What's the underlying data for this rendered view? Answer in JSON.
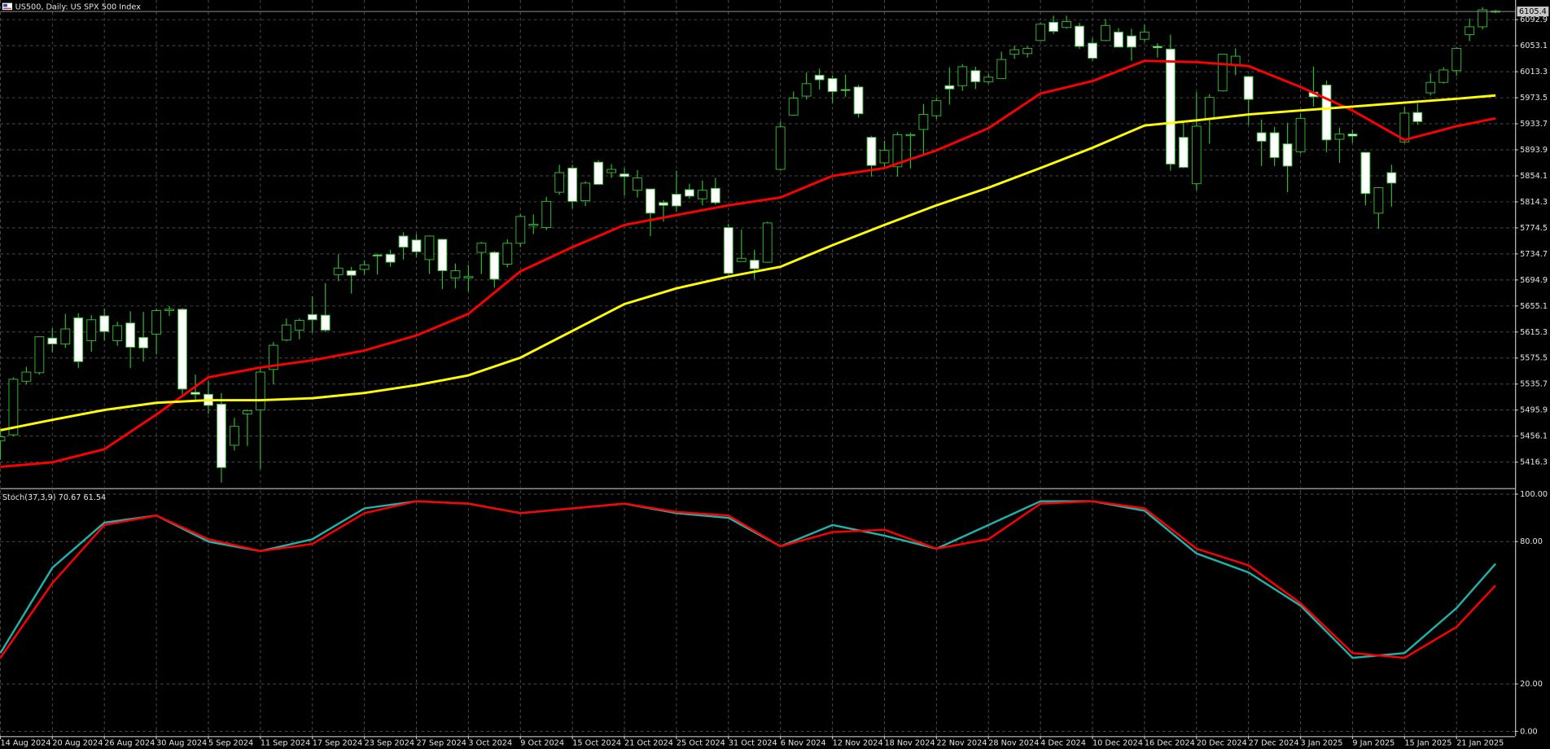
{
  "chart_data": [
    {
      "type": "candlestick",
      "title": "US500, Daily: US SPX 500 Index",
      "last_price": 6105.4,
      "xlim": [
        0,
        116.5
      ],
      "ylim": [
        5378,
        6123
      ],
      "yticks": [
        6092.9,
        6053.1,
        6013.3,
        5973.5,
        5933.7,
        5893.9,
        5854.1,
        5814.3,
        5774.5,
        5734.7,
        5694.9,
        5655.1,
        5615.3,
        5575.5,
        5535.7,
        5495.9,
        5456.1,
        5416.3
      ],
      "grid": true,
      "up_color": "#000000",
      "down_color": "#ffffff",
      "wick_color": "#2eb82e",
      "ohlc": [
        [
          5449,
          5464,
          5420,
          5455
        ],
        [
          5458,
          5546,
          5456,
          5543
        ],
        [
          5540,
          5562,
          5535,
          5554
        ],
        [
          5553,
          5608,
          5550,
          5608
        ],
        [
          5606,
          5621,
          5584,
          5597
        ],
        [
          5597,
          5643,
          5591,
          5620
        ],
        [
          5637,
          5644,
          5560,
          5570
        ],
        [
          5602,
          5641,
          5585,
          5634
        ],
        [
          5640,
          5651,
          5602,
          5616
        ],
        [
          5602,
          5631,
          5594,
          5625
        ],
        [
          5629,
          5647,
          5560,
          5592
        ],
        [
          5607,
          5646,
          5570,
          5591
        ],
        [
          5612,
          5651,
          5581,
          5648
        ],
        [
          5648,
          5655,
          5640,
          5650
        ],
        [
          5650,
          5652,
          5520,
          5528
        ],
        [
          5523,
          5550,
          5510,
          5520
        ],
        [
          5520,
          5540,
          5490,
          5503
        ],
        [
          5505,
          5522,
          5385,
          5408
        ],
        [
          5442,
          5484,
          5434,
          5471
        ],
        [
          5490,
          5497,
          5441,
          5495
        ],
        [
          5496,
          5560,
          5406,
          5554
        ],
        [
          5558,
          5600,
          5535,
          5595
        ],
        [
          5603,
          5636,
          5601,
          5626
        ],
        [
          5618,
          5636,
          5604,
          5633
        ],
        [
          5642,
          5670,
          5614,
          5634
        ],
        [
          5641,
          5690,
          5615,
          5618
        ],
        [
          5703,
          5734,
          5693,
          5713
        ],
        [
          5709,
          5715,
          5674,
          5702
        ],
        [
          5711,
          5725,
          5703,
          5718
        ],
        [
          5733,
          5735,
          5703,
          5732
        ],
        [
          5734,
          5741,
          5715,
          5722
        ],
        [
          5762,
          5768,
          5726,
          5745
        ],
        [
          5756,
          5765,
          5730,
          5738
        ],
        [
          5726,
          5763,
          5704,
          5762
        ],
        [
          5757,
          5757,
          5681,
          5709
        ],
        [
          5698,
          5720,
          5682,
          5709
        ],
        [
          5698,
          5718,
          5677,
          5700
        ],
        [
          5737,
          5753,
          5704,
          5751
        ],
        [
          5737,
          5739,
          5683,
          5696
        ],
        [
          5719,
          5757,
          5714,
          5751
        ],
        [
          5751,
          5796,
          5745,
          5792
        ],
        [
          5778,
          5795,
          5765,
          5780
        ],
        [
          5775,
          5822,
          5771,
          5815
        ],
        [
          5829,
          5871,
          5825,
          5859
        ],
        [
          5866,
          5871,
          5804,
          5815
        ],
        [
          5816,
          5846,
          5808,
          5843
        ],
        [
          5875,
          5878,
          5840,
          5841
        ],
        [
          5859,
          5872,
          5851,
          5864
        ],
        [
          5857,
          5866,
          5824,
          5853
        ],
        [
          5832,
          5863,
          5821,
          5851
        ],
        [
          5834,
          5834,
          5762,
          5797
        ],
        [
          5813,
          5817,
          5784,
          5809
        ],
        [
          5826,
          5862,
          5799,
          5808
        ],
        [
          5833,
          5842,
          5819,
          5823
        ],
        [
          5819,
          5847,
          5809,
          5832
        ],
        [
          5835,
          5851,
          5810,
          5813
        ],
        [
          5775,
          5781,
          5703,
          5705
        ],
        [
          5723,
          5772,
          5723,
          5728
        ],
        [
          5725,
          5741,
          5696,
          5712
        ],
        [
          5722,
          5784,
          5721,
          5782
        ],
        [
          5864,
          5937,
          5862,
          5929
        ],
        [
          5947,
          5983,
          5946,
          5973
        ],
        [
          5976,
          6012,
          5971,
          5995
        ],
        [
          6008,
          6018,
          5986,
          6001
        ],
        [
          6003,
          6008,
          5965,
          5983
        ],
        [
          5986,
          6009,
          5975,
          5985
        ],
        [
          5990,
          5993,
          5943,
          5949
        ],
        [
          5913,
          5915,
          5853,
          5870
        ],
        [
          5874,
          5908,
          5866,
          5893
        ],
        [
          5868,
          5921,
          5853,
          5917
        ],
        [
          5917,
          5920,
          5865,
          5917
        ],
        [
          5925,
          5964,
          5886,
          5948
        ],
        [
          5946,
          5973,
          5941,
          5969
        ],
        [
          5992,
          6020,
          5963,
          5987
        ],
        [
          5992,
          6025,
          5984,
          6021
        ],
        [
          6015,
          6021,
          5987,
          5998
        ],
        [
          5998,
          6010,
          5995,
          6005
        ],
        [
          6003,
          6044,
          6003,
          6032
        ],
        [
          6040,
          6053,
          6033,
          6047
        ],
        [
          6041,
          6052,
          6035,
          6049
        ],
        [
          6061,
          6089,
          6060,
          6086
        ],
        [
          6089,
          6099,
          6071,
          6075
        ],
        [
          6081,
          6099,
          6079,
          6090
        ],
        [
          6083,
          6088,
          6048,
          6052
        ],
        [
          6057,
          6065,
          6030,
          6034
        ],
        [
          6061,
          6094,
          6060,
          6084
        ],
        [
          6074,
          6080,
          6051,
          6051
        ],
        [
          6068,
          6079,
          6030,
          6051
        ],
        [
          6063,
          6085,
          6059,
          6074
        ],
        [
          6052,
          6057,
          6035,
          6050
        ],
        [
          6048,
          6070,
          5862,
          5872
        ],
        [
          5913,
          5936,
          5866,
          5867
        ],
        [
          5842,
          5982,
          5832,
          5930
        ],
        [
          5941,
          5979,
          5903,
          5974
        ],
        [
          5984,
          6040,
          5983,
          6040
        ],
        [
          6024,
          6049,
          6008,
          6037
        ],
        [
          6006,
          6007,
          5932,
          5971
        ],
        [
          5920,
          5940,
          5869,
          5907
        ],
        [
          5920,
          5929,
          5869,
          5882
        ],
        [
          5903,
          5935,
          5829,
          5869
        ],
        [
          5891,
          5949,
          5888,
          5942
        ],
        [
          5982,
          6021,
          5960,
          5975
        ],
        [
          5993,
          6000,
          5890,
          5909
        ],
        [
          5910,
          5928,
          5874,
          5918
        ],
        [
          5918,
          5925,
          5905,
          5915
        ],
        [
          5890,
          5890,
          5809,
          5827
        ],
        [
          5797,
          5837,
          5773,
          5836
        ],
        [
          5859,
          5871,
          5807,
          5843
        ],
        [
          5906,
          5960,
          5904,
          5950
        ],
        [
          5951,
          5965,
          5932,
          5937
        ],
        [
          5981,
          6011,
          5977,
          5997
        ],
        [
          5997,
          6020,
          5995,
          6016
        ],
        [
          6015,
          6051,
          6007,
          6049
        ],
        [
          6070,
          6095,
          6060,
          6082
        ],
        [
          6082,
          6112,
          6078,
          6108
        ],
        [
          6106,
          6108,
          6103,
          6105
        ]
      ],
      "series": [
        {
          "color": "#ff0000",
          "x": [
            0,
            4,
            8,
            12,
            16,
            20,
            24,
            28,
            32,
            36,
            40,
            44,
            48,
            52,
            56,
            60,
            64,
            68,
            72,
            76,
            80,
            84,
            88,
            92,
            96,
            100,
            104,
            108,
            112,
            115
          ],
          "values": [
            5409,
            5416,
            5436,
            5489,
            5546,
            5561,
            5572,
            5587,
            5610,
            5643,
            5708,
            5745,
            5779,
            5794,
            5809,
            5821,
            5854,
            5866,
            5893,
            5927,
            5980,
            5999,
            6030,
            6028,
            6022,
            5990,
            5954,
            5909,
            5930,
            5942
          ]
        },
        {
          "color": "#ffff00",
          "x": [
            0,
            4,
            8,
            12,
            16,
            20,
            24,
            28,
            32,
            36,
            40,
            44,
            48,
            52,
            56,
            60,
            64,
            68,
            72,
            76,
            80,
            84,
            88,
            92,
            96,
            100,
            104,
            108,
            112,
            115
          ],
          "values": [
            5465,
            5481,
            5496,
            5507,
            5511,
            5511,
            5514,
            5522,
            5534,
            5549,
            5576,
            5617,
            5658,
            5682,
            5700,
            5715,
            5748,
            5779,
            5809,
            5836,
            5866,
            5897,
            5931,
            5939,
            5948,
            5954,
            5960,
            5966,
            5972,
            5977
          ]
        }
      ]
    },
    {
      "type": "line",
      "title": "Stoch(37,3,9) 70.67 61.54",
      "xlim": [
        0,
        116.5
      ],
      "ylim": [
        -2,
        101.7
      ],
      "yticks": [
        {
          "value": 100,
          "label": "100.00"
        },
        {
          "value": 80,
          "label": "80.00"
        },
        {
          "value": 20,
          "label": "20.00"
        },
        {
          "value": 0,
          "label": "0.00"
        }
      ],
      "grid": true,
      "xticks": [
        {
          "value": 0,
          "label": "14 Aug 2024"
        },
        {
          "value": 4,
          "label": "20 Aug 2024"
        },
        {
          "value": 8,
          "label": "26 Aug 2024"
        },
        {
          "value": 12,
          "label": "30 Aug 2024"
        },
        {
          "value": 16,
          "label": "5 Sep 2024"
        },
        {
          "value": 20,
          "label": "11 Sep 2024"
        },
        {
          "value": 24,
          "label": "17 Sep 2024"
        },
        {
          "value": 28,
          "label": "23 Sep 2024"
        },
        {
          "value": 32,
          "label": "27 Sep 2024"
        },
        {
          "value": 36,
          "label": "3 Oct 2024"
        },
        {
          "value": 40,
          "label": "9 Oct 2024"
        },
        {
          "value": 44,
          "label": "15 Oct 2024"
        },
        {
          "value": 48,
          "label": "21 Oct 2024"
        },
        {
          "value": 52,
          "label": "25 Oct 2024"
        },
        {
          "value": 56,
          "label": "31 Oct 2024"
        },
        {
          "value": 60,
          "label": "6 Nov 2024"
        },
        {
          "value": 64,
          "label": "12 Nov 2024"
        },
        {
          "value": 68,
          "label": "18 Nov 2024"
        },
        {
          "value": 72,
          "label": "22 Nov 2024"
        },
        {
          "value": 76,
          "label": "28 Nov 2024"
        },
        {
          "value": 80,
          "label": "4 Dec 2024"
        },
        {
          "value": 84,
          "label": "10 Dec 2024"
        },
        {
          "value": 88,
          "label": "16 Dec 2024"
        },
        {
          "value": 92,
          "label": "20 Dec 2024"
        },
        {
          "value": 96,
          "label": "27 Dec 2024"
        },
        {
          "value": 100,
          "label": "3 Jan 2025"
        },
        {
          "value": 104,
          "label": "9 Jan 2025"
        },
        {
          "value": 108,
          "label": "15 Jan 2025"
        },
        {
          "value": 112,
          "label": "21 Jan 2025"
        }
      ],
      "series": [
        {
          "color": "#20b2aa",
          "x": [
            0,
            4,
            8,
            12,
            16,
            20,
            24,
            28,
            32,
            36,
            40,
            44,
            48,
            52,
            56,
            60,
            64,
            68,
            72,
            76,
            80,
            84,
            88,
            92,
            96,
            100,
            104,
            108,
            112,
            115
          ],
          "values": [
            33,
            69,
            88,
            91,
            80,
            76,
            81,
            94,
            97,
            96,
            92,
            94,
            96,
            92,
            90,
            78,
            87,
            82.5,
            77,
            87,
            97,
            97,
            93,
            75,
            67,
            53,
            31,
            33,
            52,
            70.67
          ]
        },
        {
          "color": "#ff0000",
          "x": [
            0,
            4,
            8,
            12,
            16,
            20,
            24,
            28,
            32,
            36,
            40,
            44,
            48,
            52,
            56,
            60,
            64,
            68,
            72,
            76,
            80,
            84,
            88,
            92,
            96,
            100,
            104,
            108,
            112,
            115
          ],
          "values": [
            31,
            62.5,
            87,
            91,
            81,
            76,
            79,
            92,
            97,
            96,
            92,
            94,
            96,
            92.5,
            91,
            78,
            84,
            85,
            77,
            81,
            96,
            97,
            94,
            77,
            70,
            54,
            33,
            31,
            44,
            61.54
          ]
        }
      ]
    }
  ]
}
